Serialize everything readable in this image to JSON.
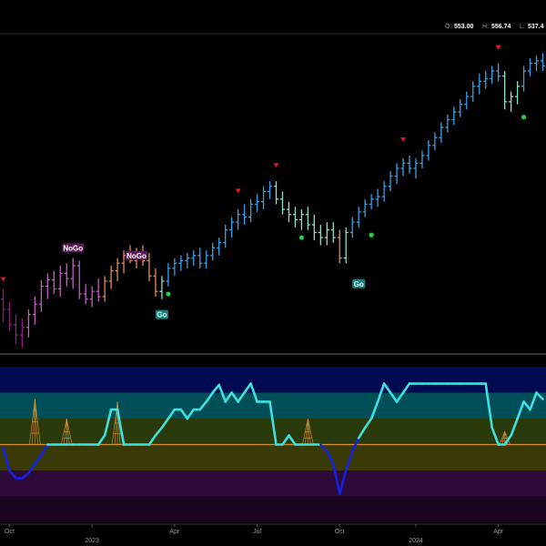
{
  "ohlc": {
    "o_label": "O:",
    "o_value": "553.00",
    "h_label": "H:",
    "h_value": "556.74",
    "l_label": "L:",
    "l_value": "537.4"
  },
  "colors": {
    "strong_up": "#3aa0e6",
    "weak_up": "#8ee0c8",
    "weak_down": "#e08a5a",
    "strong_down": "#c060c0",
    "deep_down": "#8a1f78",
    "go_dot": "#22d13b",
    "top_marker": "#e01a1a",
    "osc_up": "#3fe0e0",
    "osc_down": "#1522e0",
    "zero_line": "#d6903c"
  },
  "chart_data": {
    "type": "bar",
    "x_ticks": [
      {
        "i": 1,
        "month": "Oct",
        "year": ""
      },
      {
        "i": 14,
        "month": "",
        "year": "2023"
      },
      {
        "i": 27,
        "month": "Apr",
        "year": ""
      },
      {
        "i": 40,
        "month": "Jul",
        "year": ""
      },
      {
        "i": 53,
        "month": "Oct",
        "year": ""
      },
      {
        "i": 65,
        "month": "",
        "year": "2024"
      },
      {
        "i": 78,
        "month": "Apr",
        "year": ""
      }
    ],
    "x_range": [
      0,
      86
    ],
    "price_range": [
      330,
      575
    ],
    "price_bars": [
      {
        "i": 0,
        "o": 370,
        "h": 378,
        "l": 352,
        "c": 362,
        "trend": "deep_down"
      },
      {
        "i": 1,
        "o": 362,
        "h": 368,
        "l": 345,
        "c": 350,
        "trend": "deep_down"
      },
      {
        "i": 2,
        "o": 350,
        "h": 358,
        "l": 335,
        "c": 342,
        "trend": "deep_down"
      },
      {
        "i": 3,
        "o": 342,
        "h": 355,
        "l": 332,
        "c": 348,
        "trend": "deep_down"
      },
      {
        "i": 4,
        "o": 348,
        "h": 362,
        "l": 340,
        "c": 358,
        "trend": "strong_down"
      },
      {
        "i": 5,
        "o": 358,
        "h": 372,
        "l": 350,
        "c": 366,
        "trend": "strong_down"
      },
      {
        "i": 6,
        "o": 366,
        "h": 385,
        "l": 360,
        "c": 380,
        "trend": "strong_down"
      },
      {
        "i": 7,
        "o": 380,
        "h": 390,
        "l": 370,
        "c": 385,
        "trend": "strong_down"
      },
      {
        "i": 8,
        "o": 385,
        "h": 392,
        "l": 374,
        "c": 378,
        "trend": "strong_down"
      },
      {
        "i": 9,
        "o": 378,
        "h": 396,
        "l": 372,
        "c": 390,
        "trend": "strong_down"
      },
      {
        "i": 10,
        "o": 390,
        "h": 398,
        "l": 380,
        "c": 386,
        "trend": "strong_down"
      },
      {
        "i": 11,
        "o": 386,
        "h": 402,
        "l": 378,
        "c": 396,
        "trend": "strong_down"
      },
      {
        "i": 12,
        "o": 396,
        "h": 400,
        "l": 370,
        "c": 374,
        "trend": "strong_down"
      },
      {
        "i": 13,
        "o": 374,
        "h": 382,
        "l": 366,
        "c": 370,
        "trend": "strong_down"
      },
      {
        "i": 14,
        "o": 370,
        "h": 380,
        "l": 364,
        "c": 376,
        "trend": "strong_down"
      },
      {
        "i": 15,
        "o": 376,
        "h": 386,
        "l": 368,
        "c": 372,
        "trend": "strong_down"
      },
      {
        "i": 16,
        "o": 372,
        "h": 388,
        "l": 368,
        "c": 384,
        "trend": "weak_down"
      },
      {
        "i": 17,
        "o": 384,
        "h": 396,
        "l": 378,
        "c": 392,
        "trend": "weak_down"
      },
      {
        "i": 18,
        "o": 392,
        "h": 402,
        "l": 384,
        "c": 398,
        "trend": "weak_down"
      },
      {
        "i": 19,
        "o": 398,
        "h": 408,
        "l": 390,
        "c": 404,
        "trend": "weak_down"
      },
      {
        "i": 20,
        "o": 404,
        "h": 412,
        "l": 398,
        "c": 400,
        "trend": "weak_down"
      },
      {
        "i": 21,
        "o": 400,
        "h": 410,
        "l": 394,
        "c": 406,
        "trend": "weak_down"
      },
      {
        "i": 22,
        "o": 406,
        "h": 412,
        "l": 396,
        "c": 400,
        "trend": "weak_down"
      },
      {
        "i": 23,
        "o": 400,
        "h": 406,
        "l": 384,
        "c": 388,
        "trend": "weak_down"
      },
      {
        "i": 24,
        "o": 388,
        "h": 394,
        "l": 372,
        "c": 376,
        "trend": "weak_down"
      },
      {
        "i": 25,
        "o": 376,
        "h": 388,
        "l": 370,
        "c": 384,
        "trend": "weak_up"
      },
      {
        "i": 26,
        "o": 384,
        "h": 398,
        "l": 380,
        "c": 394,
        "trend": "strong_up"
      },
      {
        "i": 27,
        "o": 394,
        "h": 402,
        "l": 388,
        "c": 398,
        "trend": "strong_up"
      },
      {
        "i": 28,
        "o": 398,
        "h": 404,
        "l": 392,
        "c": 400,
        "trend": "strong_up"
      },
      {
        "i": 29,
        "o": 400,
        "h": 406,
        "l": 394,
        "c": 402,
        "trend": "strong_up"
      },
      {
        "i": 30,
        "o": 402,
        "h": 408,
        "l": 396,
        "c": 404,
        "trend": "strong_up"
      },
      {
        "i": 31,
        "o": 404,
        "h": 410,
        "l": 394,
        "c": 398,
        "trend": "strong_up"
      },
      {
        "i": 32,
        "o": 398,
        "h": 408,
        "l": 394,
        "c": 404,
        "trend": "strong_up"
      },
      {
        "i": 33,
        "o": 404,
        "h": 414,
        "l": 400,
        "c": 410,
        "trend": "strong_up"
      },
      {
        "i": 34,
        "o": 410,
        "h": 418,
        "l": 404,
        "c": 414,
        "trend": "strong_up"
      },
      {
        "i": 35,
        "o": 414,
        "h": 428,
        "l": 410,
        "c": 424,
        "trend": "strong_up"
      },
      {
        "i": 36,
        "o": 424,
        "h": 434,
        "l": 418,
        "c": 430,
        "trend": "strong_up"
      },
      {
        "i": 37,
        "o": 430,
        "h": 440,
        "l": 424,
        "c": 436,
        "trend": "strong_up"
      },
      {
        "i": 38,
        "o": 436,
        "h": 444,
        "l": 428,
        "c": 434,
        "trend": "strong_up"
      },
      {
        "i": 39,
        "o": 434,
        "h": 448,
        "l": 430,
        "c": 444,
        "trend": "strong_up"
      },
      {
        "i": 40,
        "o": 444,
        "h": 452,
        "l": 438,
        "c": 446,
        "trend": "strong_up"
      },
      {
        "i": 41,
        "o": 446,
        "h": 458,
        "l": 440,
        "c": 454,
        "trend": "strong_up"
      },
      {
        "i": 42,
        "o": 454,
        "h": 462,
        "l": 448,
        "c": 458,
        "trend": "strong_up"
      },
      {
        "i": 43,
        "o": 458,
        "h": 462,
        "l": 444,
        "c": 448,
        "trend": "weak_up"
      },
      {
        "i": 44,
        "o": 448,
        "h": 454,
        "l": 436,
        "c": 440,
        "trend": "weak_up"
      },
      {
        "i": 45,
        "o": 440,
        "h": 446,
        "l": 430,
        "c": 436,
        "trend": "weak_up"
      },
      {
        "i": 46,
        "o": 436,
        "h": 442,
        "l": 426,
        "c": 432,
        "trend": "weak_up"
      },
      {
        "i": 47,
        "o": 432,
        "h": 440,
        "l": 424,
        "c": 436,
        "trend": "weak_up"
      },
      {
        "i": 48,
        "o": 436,
        "h": 442,
        "l": 424,
        "c": 428,
        "trend": "weak_up"
      },
      {
        "i": 49,
        "o": 428,
        "h": 436,
        "l": 416,
        "c": 422,
        "trend": "weak_up"
      },
      {
        "i": 50,
        "o": 422,
        "h": 428,
        "l": 412,
        "c": 418,
        "trend": "weak_up"
      },
      {
        "i": 51,
        "o": 418,
        "h": 430,
        "l": 412,
        "c": 424,
        "trend": "weak_up"
      },
      {
        "i": 52,
        "o": 424,
        "h": 430,
        "l": 414,
        "c": 418,
        "trend": "weak_up"
      },
      {
        "i": 53,
        "o": 418,
        "h": 424,
        "l": 398,
        "c": 402,
        "trend": "weak_down"
      },
      {
        "i": 54,
        "o": 402,
        "h": 426,
        "l": 398,
        "c": 422,
        "trend": "weak_up"
      },
      {
        "i": 55,
        "o": 422,
        "h": 434,
        "l": 418,
        "c": 430,
        "trend": "strong_up"
      },
      {
        "i": 56,
        "o": 430,
        "h": 442,
        "l": 426,
        "c": 438,
        "trend": "strong_up"
      },
      {
        "i": 57,
        "o": 438,
        "h": 448,
        "l": 434,
        "c": 444,
        "trend": "strong_up"
      },
      {
        "i": 58,
        "o": 444,
        "h": 452,
        "l": 440,
        "c": 448,
        "trend": "strong_up"
      },
      {
        "i": 59,
        "o": 448,
        "h": 456,
        "l": 442,
        "c": 450,
        "trend": "strong_up"
      },
      {
        "i": 60,
        "o": 450,
        "h": 462,
        "l": 446,
        "c": 458,
        "trend": "strong_up"
      },
      {
        "i": 61,
        "o": 458,
        "h": 470,
        "l": 454,
        "c": 466,
        "trend": "strong_up"
      },
      {
        "i": 62,
        "o": 466,
        "h": 476,
        "l": 460,
        "c": 472,
        "trend": "strong_up"
      },
      {
        "i": 63,
        "o": 472,
        "h": 480,
        "l": 466,
        "c": 476,
        "trend": "strong_up"
      },
      {
        "i": 64,
        "o": 476,
        "h": 482,
        "l": 468,
        "c": 472,
        "trend": "strong_up"
      },
      {
        "i": 65,
        "o": 472,
        "h": 480,
        "l": 464,
        "c": 476,
        "trend": "strong_up"
      },
      {
        "i": 66,
        "o": 476,
        "h": 486,
        "l": 472,
        "c": 482,
        "trend": "strong_up"
      },
      {
        "i": 67,
        "o": 482,
        "h": 494,
        "l": 478,
        "c": 490,
        "trend": "strong_up"
      },
      {
        "i": 68,
        "o": 490,
        "h": 500,
        "l": 486,
        "c": 496,
        "trend": "strong_up"
      },
      {
        "i": 69,
        "o": 496,
        "h": 508,
        "l": 492,
        "c": 504,
        "trend": "strong_up"
      },
      {
        "i": 70,
        "o": 504,
        "h": 514,
        "l": 500,
        "c": 510,
        "trend": "strong_up"
      },
      {
        "i": 71,
        "o": 510,
        "h": 520,
        "l": 506,
        "c": 516,
        "trend": "strong_up"
      },
      {
        "i": 72,
        "o": 516,
        "h": 526,
        "l": 512,
        "c": 522,
        "trend": "strong_up"
      },
      {
        "i": 73,
        "o": 522,
        "h": 532,
        "l": 518,
        "c": 528,
        "trend": "strong_up"
      },
      {
        "i": 74,
        "o": 528,
        "h": 540,
        "l": 524,
        "c": 536,
        "trend": "strong_up"
      },
      {
        "i": 75,
        "o": 536,
        "h": 546,
        "l": 530,
        "c": 540,
        "trend": "strong_up"
      },
      {
        "i": 76,
        "o": 540,
        "h": 548,
        "l": 534,
        "c": 542,
        "trend": "strong_up"
      },
      {
        "i": 77,
        "o": 542,
        "h": 552,
        "l": 538,
        "c": 548,
        "trend": "strong_up"
      },
      {
        "i": 78,
        "o": 548,
        "h": 554,
        "l": 540,
        "c": 544,
        "trend": "strong_up"
      },
      {
        "i": 79,
        "o": 544,
        "h": 548,
        "l": 518,
        "c": 524,
        "trend": "weak_up"
      },
      {
        "i": 80,
        "o": 524,
        "h": 532,
        "l": 516,
        "c": 528,
        "trend": "weak_up"
      },
      {
        "i": 81,
        "o": 528,
        "h": 540,
        "l": 522,
        "c": 536,
        "trend": "weak_up"
      },
      {
        "i": 82,
        "o": 536,
        "h": 552,
        "l": 532,
        "c": 548,
        "trend": "strong_up"
      },
      {
        "i": 83,
        "o": 548,
        "h": 558,
        "l": 544,
        "c": 554,
        "trend": "strong_up"
      },
      {
        "i": 84,
        "o": 554,
        "h": 560,
        "l": 548,
        "c": 556,
        "trend": "strong_up"
      },
      {
        "i": 85,
        "o": 556,
        "h": 562,
        "l": 548,
        "c": 552,
        "trend": "strong_up"
      }
    ],
    "signal_labels": [
      {
        "i": 11,
        "price": 410,
        "text": "NoGo",
        "kind": "nogo"
      },
      {
        "i": 21,
        "price": 404,
        "text": "NoGo",
        "kind": "nogo"
      },
      {
        "i": 25,
        "price": 358,
        "text": "Go",
        "kind": "go"
      },
      {
        "i": 56,
        "price": 382,
        "text": "Go",
        "kind": "go"
      }
    ],
    "top_markers": [
      {
        "i": 0,
        "price": 385
      },
      {
        "i": 37,
        "price": 454
      },
      {
        "i": 43,
        "price": 474
      },
      {
        "i": 63,
        "price": 494
      },
      {
        "i": 78,
        "price": 566
      }
    ],
    "go_dots": [
      {
        "i": 26,
        "price": 374
      },
      {
        "i": 47,
        "price": 418
      },
      {
        "i": 58,
        "price": 420
      },
      {
        "i": 82,
        "price": 512
      }
    ],
    "oscillator": {
      "range": [
        -6,
        6
      ],
      "zero": 0,
      "bands": [
        {
          "from": 4,
          "to": 6,
          "color": "#000a50"
        },
        {
          "from": 2,
          "to": 4,
          "color": "#004e58"
        },
        {
          "from": 0,
          "to": 2,
          "color": "#2b3a0a"
        },
        {
          "from": -2,
          "to": 0,
          "color": "#3a3a06"
        },
        {
          "from": -4,
          "to": -2,
          "color": "#2c0a3a"
        },
        {
          "from": -6,
          "to": -4,
          "color": "#1a0420"
        }
      ],
      "values": [
        -0.3,
        -2.0,
        -2.6,
        -2.6,
        -2.2,
        -1.5,
        -0.8,
        0.0,
        0.0,
        0.0,
        0.0,
        0.0,
        0.0,
        0.0,
        0.0,
        0.0,
        0.7,
        2.7,
        2.7,
        0.0,
        0.0,
        0.0,
        0.0,
        0.0,
        0.7,
        1.3,
        2.0,
        2.7,
        2.7,
        2.0,
        2.7,
        2.7,
        3.3,
        4.0,
        4.6,
        3.3,
        4.0,
        3.3,
        4.0,
        4.7,
        3.3,
        3.3,
        3.3,
        0.0,
        0.0,
        0.7,
        0.0,
        0.0,
        0.0,
        0.0,
        0.0,
        -0.5,
        -1.5,
        -3.8,
        -2.0,
        -0.5,
        0.5,
        1.3,
        2.0,
        3.3,
        4.7,
        4.0,
        3.3,
        4.0,
        4.7,
        4.7,
        4.7,
        4.7,
        4.7,
        4.7,
        4.7,
        4.7,
        4.7,
        4.7,
        4.7,
        4.7,
        4.7,
        1.3,
        0.0,
        0.0,
        0.7,
        2.0,
        3.3,
        2.7,
        4.0,
        3.5
      ],
      "spikes": [
        {
          "i": 5,
          "value": 3.5
        },
        {
          "i": 10,
          "value": 2.0
        },
        {
          "i": 18,
          "value": 3.3
        },
        {
          "i": 48,
          "value": 2.0
        },
        {
          "i": 79,
          "value": 1.0
        }
      ]
    }
  }
}
